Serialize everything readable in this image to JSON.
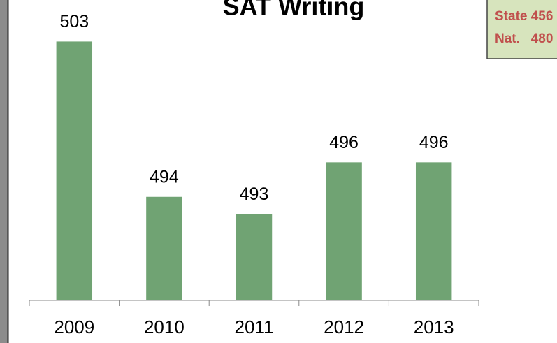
{
  "chart_data": {
    "type": "bar",
    "title": "SAT Writing",
    "categories": [
      "2009",
      "2010",
      "2011",
      "2012",
      "2013"
    ],
    "values": [
      503,
      494,
      493,
      496,
      496
    ],
    "color": "#70a373",
    "ylim": [
      488,
      505
    ],
    "annotations": [
      "State 456",
      "Nat.   480"
    ]
  }
}
